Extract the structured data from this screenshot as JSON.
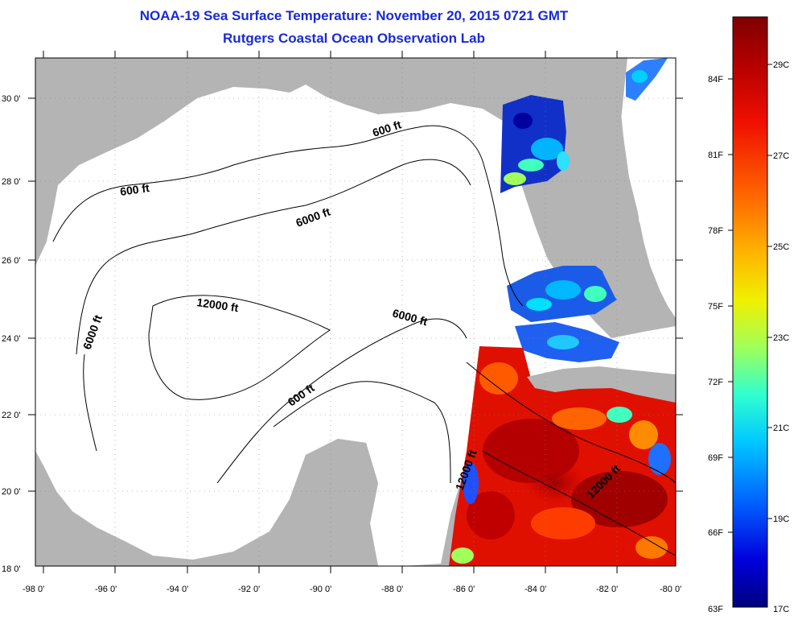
{
  "header": {
    "title": "NOAA-19 Sea Surface Temperature:  November 20, 2015 0721 GMT",
    "subtitle": "Rutgers Coastal Ocean Observation Lab"
  },
  "map": {
    "lon_labels": [
      "-98 0'",
      "-96 0'",
      "-94 0'",
      "-92 0'",
      "-90 0'",
      "-88 0'",
      "-86 0'",
      "-84 0'",
      "-82 0'",
      "-80 0'"
    ],
    "lat_labels": [
      "30 0'",
      "28 0'",
      "26 0'",
      "24 0'",
      "22 0'",
      "20 0'",
      "18 0'"
    ],
    "contour_labels": [
      "600 ft",
      "600 ft",
      "6000 ft",
      "6000 ft",
      "6000 ft",
      "12000 ft",
      "600 ft",
      "12000 ft",
      "12000 ft"
    ],
    "land_color": "#b4b4b4",
    "water_color": "#ffffff"
  },
  "colorbar": {
    "fahrenheit_labels": [
      "84F",
      "81F",
      "78F",
      "75F",
      "72F",
      "69F",
      "66F",
      "63F"
    ],
    "celsius_labels": [
      "29C",
      "27C",
      "25C",
      "23C",
      "21C",
      "19C",
      "17C"
    ],
    "colors": [
      "#7f0000",
      "#c80000",
      "#ff3000",
      "#ff8c00",
      "#ffe400",
      "#b4ff48",
      "#40ffbf",
      "#00c8ff",
      "#0050ff",
      "#0000c8",
      "#00007f"
    ]
  }
}
